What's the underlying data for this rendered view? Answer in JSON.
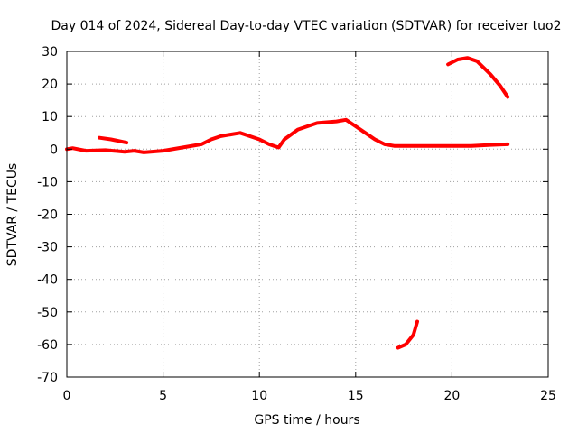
{
  "chart_data": {
    "type": "line",
    "title": "Day 014 of 2024, Sidereal Day-to-day VTEC variation (SDTVAR) for receiver tuo2",
    "xlabel": "GPS time / hours",
    "ylabel": "SDTVAR / TECUs",
    "xlim": [
      0,
      25
    ],
    "ylim": [
      -70,
      30
    ],
    "xticks": [
      0,
      5,
      10,
      15,
      20,
      25
    ],
    "yticks": [
      -70,
      -60,
      -50,
      -40,
      -30,
      -20,
      -10,
      0,
      10,
      20,
      30
    ],
    "grid": true,
    "color": "#ff0000",
    "series": [
      {
        "name": "main",
        "points": [
          [
            0,
            0
          ],
          [
            0.3,
            0.3
          ],
          [
            1,
            -0.5
          ],
          [
            2,
            -0.3
          ],
          [
            3,
            -0.8
          ],
          [
            3.5,
            -0.5
          ],
          [
            4,
            -1
          ],
          [
            5,
            -0.5
          ],
          [
            6,
            0.5
          ],
          [
            7,
            1.5
          ],
          [
            7.5,
            3
          ],
          [
            8,
            4
          ],
          [
            8.5,
            4.5
          ],
          [
            9,
            5
          ],
          [
            9.5,
            4
          ],
          [
            10,
            3
          ],
          [
            10.5,
            1.5
          ],
          [
            11,
            0.5
          ],
          [
            11.3,
            3
          ],
          [
            12,
            6
          ],
          [
            12.5,
            7
          ],
          [
            13,
            8
          ],
          [
            14,
            8.5
          ],
          [
            14.5,
            9
          ],
          [
            15,
            7
          ],
          [
            15.5,
            5
          ],
          [
            16,
            3
          ],
          [
            16.5,
            1.5
          ],
          [
            17,
            1
          ],
          [
            18,
            1
          ],
          [
            19,
            1
          ],
          [
            20,
            1
          ],
          [
            21,
            1
          ],
          [
            22,
            1.3
          ],
          [
            22.9,
            1.5
          ]
        ]
      },
      {
        "name": "segment-2",
        "points": [
          [
            1.7,
            3.5
          ],
          [
            2.3,
            3
          ],
          [
            3.1,
            2
          ]
        ]
      },
      {
        "name": "segment-3",
        "points": [
          [
            19.8,
            26
          ],
          [
            20.3,
            27.5
          ],
          [
            20.8,
            28
          ],
          [
            21.3,
            27
          ],
          [
            22,
            23
          ],
          [
            22.5,
            19.5
          ],
          [
            22.9,
            16
          ]
        ]
      },
      {
        "name": "segment-4",
        "points": [
          [
            17.2,
            -61
          ],
          [
            17.6,
            -60
          ],
          [
            18,
            -57
          ],
          [
            18.2,
            -53
          ]
        ]
      }
    ]
  }
}
